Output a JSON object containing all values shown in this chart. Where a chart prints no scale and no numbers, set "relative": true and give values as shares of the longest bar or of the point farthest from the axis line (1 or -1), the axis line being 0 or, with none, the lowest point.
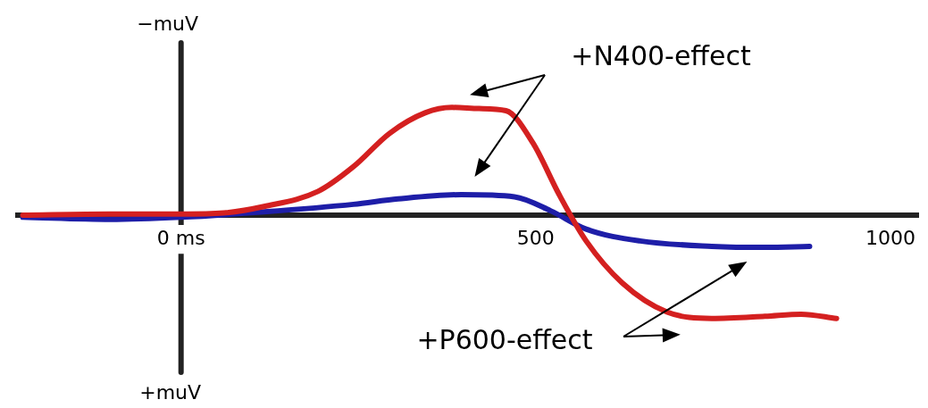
{
  "chart_data": {
    "type": "line",
    "relative": true,
    "xlim": [
      -230,
      1040
    ],
    "xticks": [
      {
        "value": 0,
        "label": "0 ms"
      },
      500,
      1000
    ],
    "series": [
      {
        "color": "#d42020",
        "x": [
          -223,
          -100,
          0,
          60,
          117,
          193,
          243,
          294,
          344,
          382,
          420,
          458,
          496,
          533,
          571,
          622,
          685,
          748,
          823,
          874,
          924
        ],
        "values": [
          0,
          0.01,
          0.01,
          0.02,
          0.08,
          0.22,
          0.45,
          0.76,
          0.95,
          1.0,
          0.99,
          0.97,
          0.67,
          0.19,
          -0.24,
          -0.63,
          -0.9,
          -0.96,
          -0.94,
          -0.92,
          -0.96
        ]
      },
      {
        "color": "#1e1ea8",
        "x": [
          -223,
          -100,
          0,
          117,
          243,
          306,
          395,
          470,
          521,
          571,
          647,
          748,
          823,
          886
        ],
        "values": [
          -0.02,
          -0.04,
          -0.02,
          0.03,
          0.1,
          0.15,
          0.19,
          0.17,
          0.04,
          -0.13,
          -0.24,
          -0.29,
          -0.3,
          -0.29
        ]
      }
    ],
    "ref_lines": [
      {
        "axis": "x",
        "value": 0,
        "color": "#222222"
      }
    ],
    "annotations": [
      "−muV",
      "+muV",
      "+N400-effect",
      "+P600-effect"
    ],
    "grid": false,
    "legend": false,
    "marker": "none",
    "line_style": "solid"
  }
}
